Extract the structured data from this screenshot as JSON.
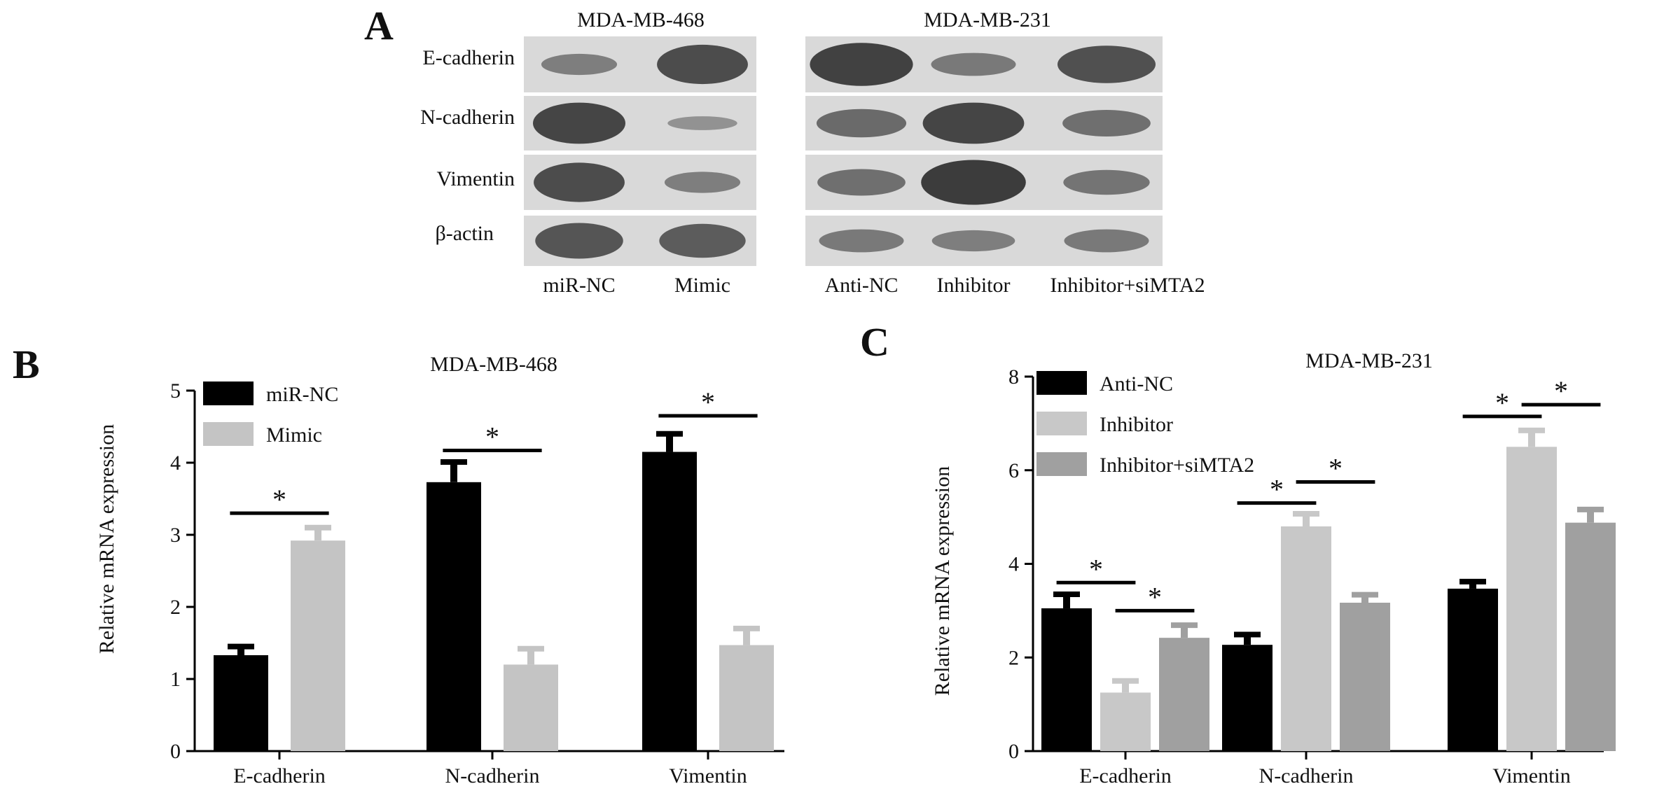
{
  "figure": {
    "panel_letters": [
      "A",
      "B",
      "C"
    ]
  },
  "western_blot": {
    "left": {
      "title": "MDA-MB-468",
      "lanes": [
        "miR-NC",
        "Mimic"
      ],
      "rows": [
        "E-cadherin",
        "N-cadherin",
        "Vimentin",
        "β-actin"
      ],
      "intensity": [
        [
          0.35,
          0.85
        ],
        [
          0.9,
          0.15
        ],
        [
          0.85,
          0.35
        ],
        [
          0.75,
          0.7
        ]
      ]
    },
    "right": {
      "title": "MDA-MB-231",
      "lanes": [
        "Anti-NC",
        "Inhibitor",
        "Inhibitor+siMTA2"
      ],
      "intensity": [
        [
          0.95,
          0.4,
          0.8
        ],
        [
          0.55,
          0.9,
          0.5
        ],
        [
          0.5,
          1.0,
          0.45
        ],
        [
          0.4,
          0.35,
          0.4
        ]
      ]
    },
    "band_color": "#3c3c3c",
    "membrane_color": "#d9d9d9"
  },
  "chart_data": [
    {
      "type": "bar",
      "panel": "B",
      "title": "MDA-MB-468",
      "ylabel": "Relative mRNA expression",
      "xlabel": "",
      "categories": [
        "E-cadherin",
        "N-cadherin",
        "Vimentin"
      ],
      "series": [
        {
          "name": "miR-NC",
          "color": "#000000",
          "values": [
            1.33,
            3.73,
            4.15
          ],
          "errors": [
            0.12,
            0.28,
            0.25
          ]
        },
        {
          "name": "Mimic",
          "color": "#c4c4c4",
          "values": [
            2.92,
            1.2,
            1.47
          ],
          "errors": [
            0.18,
            0.22,
            0.23
          ]
        }
      ],
      "ylim": [
        0,
        5
      ],
      "yticks": [
        0,
        1,
        2,
        3,
        4,
        5
      ],
      "legend_position": "top-left",
      "significance": [
        {
          "from_series": 0,
          "to_series": 1,
          "category": 0,
          "label": "*",
          "y": 3.3
        },
        {
          "from_series": 0,
          "to_series": 1,
          "category": 1,
          "label": "*",
          "y": 4.17
        },
        {
          "from_series": 0,
          "to_series": 1,
          "category": 2,
          "label": "*",
          "y": 4.65
        }
      ]
    },
    {
      "type": "bar",
      "panel": "C",
      "title": "MDA-MB-231",
      "ylabel": "Relative mRNA expression",
      "xlabel": "",
      "categories": [
        "E-cadherin",
        "N-cadherin",
        "Vimentin"
      ],
      "series": [
        {
          "name": "Anti-NC",
          "color": "#000000",
          "values": [
            3.05,
            2.27,
            3.47
          ],
          "errors": [
            0.3,
            0.22,
            0.15
          ]
        },
        {
          "name": "Inhibitor",
          "color": "#c8c8c8",
          "values": [
            1.25,
            4.8,
            6.5
          ],
          "errors": [
            0.25,
            0.27,
            0.35
          ]
        },
        {
          "name": "Inhibitor+siMTA2",
          "color": "#a0a0a0",
          "values": [
            2.42,
            3.17,
            4.88
          ],
          "errors": [
            0.27,
            0.17,
            0.28
          ]
        }
      ],
      "ylim": [
        0,
        8
      ],
      "yticks": [
        0,
        2,
        4,
        6,
        8
      ],
      "legend_position": "top-left",
      "significance": [
        {
          "from_series": 0,
          "to_series": 1,
          "category": 0,
          "label": "*",
          "y": 3.6
        },
        {
          "from_series": 1,
          "to_series": 2,
          "category": 0,
          "label": "*",
          "y": 3.0
        },
        {
          "from_series": 0,
          "to_series": 1,
          "category": 1,
          "label": "*",
          "y": 5.3
        },
        {
          "from_series": 1,
          "to_series": 2,
          "category": 1,
          "label": "*",
          "y": 5.75
        },
        {
          "from_series": 0,
          "to_series": 1,
          "category": 2,
          "label": "*",
          "y": 7.15
        },
        {
          "from_series": 1,
          "to_series": 2,
          "category": 2,
          "label": "*",
          "y": 7.4
        }
      ]
    }
  ]
}
